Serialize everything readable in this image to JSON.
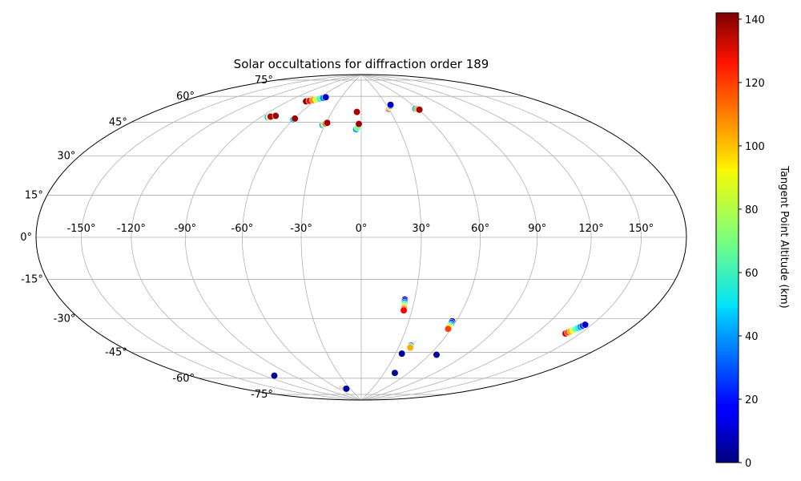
{
  "chart_data": {
    "type": "scatter",
    "projection": "hammer",
    "title": "Solar occultations for diffraction order 189",
    "grid": true,
    "xlim": [
      -180,
      180
    ],
    "ylim": [
      -90,
      90
    ],
    "x_ticks": [
      -150,
      -120,
      -90,
      -60,
      -30,
      0,
      30,
      60,
      90,
      120,
      150
    ],
    "y_ticks": [
      -75,
      -60,
      -45,
      -30,
      -15,
      0,
      15,
      30,
      45,
      60,
      75
    ],
    "x_tick_labels": [
      "-150°",
      "-120°",
      "-90°",
      "-60°",
      "-30°",
      "0°",
      "30°",
      "60°",
      "90°",
      "120°",
      "150°"
    ],
    "y_tick_labels": [
      "-75°",
      "-60°",
      "-45°",
      "-30°",
      "-15°",
      "0°",
      "15°",
      "30°",
      "45°",
      "60°",
      "75°"
    ],
    "colorbar": {
      "label": "Tangent Point Altitude (km)",
      "colormap": "jet",
      "min": 0,
      "max": 142,
      "ticks": [
        0,
        20,
        40,
        60,
        80,
        100,
        120,
        140
      ],
      "tick_labels": [
        "0",
        "20",
        "40",
        "60",
        "80",
        "100",
        "120",
        "140"
      ]
    },
    "series": [
      {
        "lon": [
          -70,
          -67,
          -64,
          -61,
          -58,
          -55,
          -52.5
        ],
        "lat": [
          70.5,
          71,
          71.6,
          72.2,
          72.8,
          73.4,
          74
        ],
        "altitude": [
          140,
          122,
          104,
          84,
          62,
          38,
          10
        ]
      },
      {
        "lon": [
          -84,
          -83,
          -82.5,
          -79
        ],
        "lat": [
          59.8,
          60,
          60.3,
          61
        ],
        "altitude": [
          40,
          80,
          135,
          138
        ]
      },
      {
        "lon": [
          -60,
          -59.5
        ],
        "lat": [
          60,
          60.6
        ],
        "altitude": [
          45,
          138
        ]
      },
      {
        "lon": [
          -32,
          -31,
          -30,
          -29
        ],
        "lat": [
          58,
          58.4,
          58.8,
          59.3
        ],
        "altitude": [
          40,
          75,
          110,
          138
        ]
      },
      {
        "lon": [
          -4,
          -3,
          -2,
          -4.5
        ],
        "lat": [
          56,
          57,
          59,
          66
        ],
        "altitude": [
          40,
          70,
          138,
          136
        ]
      },
      {
        "lon": [
          30,
          31,
          32.5,
          34,
          35
        ],
        "lat": [
          67.5,
          68,
          68.6,
          69.2,
          69.8
        ],
        "altitude": [
          138,
          110,
          80,
          40,
          10
        ]
      },
      {
        "lon": [
          58,
          59.5,
          61
        ],
        "lat": [
          66.5,
          66.2,
          65.8
        ],
        "altitude": [
          40,
          100,
          138
        ]
      },
      {
        "lon": [
          24.5,
          24.6,
          24.7,
          24.8,
          24.9,
          25,
          25.1,
          25.2
        ],
        "lat": [
          -31.2,
          -32,
          -32.8,
          -33.6,
          -34.4,
          -35.2,
          -36,
          -36.8
        ],
        "altitude": [
          5,
          20,
          35,
          55,
          75,
          95,
          110,
          125
        ]
      },
      {
        "lon": [
          57.5,
          57.6,
          57.7,
          57.8,
          57.9,
          58
        ],
        "lat": [
          -41.6,
          -42.4,
          -43.2,
          -44,
          -44.8,
          -45.6
        ],
        "altitude": [
          5,
          20,
          40,
          65,
          90,
          115
        ]
      },
      {
        "lon": [
          39,
          39.2,
          39.4
        ],
        "lat": [
          -55.5,
          -56,
          -56.6
        ],
        "altitude": [
          10,
          50,
          100
        ]
      },
      {
        "lon": [
          35.5
        ],
        "lat": [
          -60.2
        ],
        "altitude": [
          3
        ]
      },
      {
        "lon": [
          66
        ],
        "lat": [
          -59.5
        ],
        "altitude": [
          3
        ]
      },
      {
        "lon": [
          43.5
        ],
        "lat": [
          -71.5
        ],
        "altitude": [
          3
        ]
      },
      {
        "lon": [
          -110
        ],
        "lat": [
          -69
        ],
        "altitude": [
          3
        ]
      },
      {
        "lon": [
          -48,
          -46.5,
          -45,
          -43.5,
          -42,
          -40.5
        ],
        "lat": [
          -81.5,
          -81.6,
          -81.7,
          -81.8,
          -81.8,
          -81.9
        ],
        "altitude": [
          120,
          95,
          70,
          45,
          20,
          5
        ]
      },
      {
        "lon": [
          140,
          140.7,
          141.4,
          142.1,
          142.8,
          143.5,
          144.2,
          144.9,
          145.6
        ],
        "lat": [
          -41.5,
          -40.9,
          -40.3,
          -39.7,
          -39.1,
          -38.5,
          -37.9,
          -37.3,
          -36.7
        ],
        "altitude": [
          130,
          115,
          100,
          85,
          70,
          55,
          40,
          25,
          10
        ]
      }
    ]
  }
}
